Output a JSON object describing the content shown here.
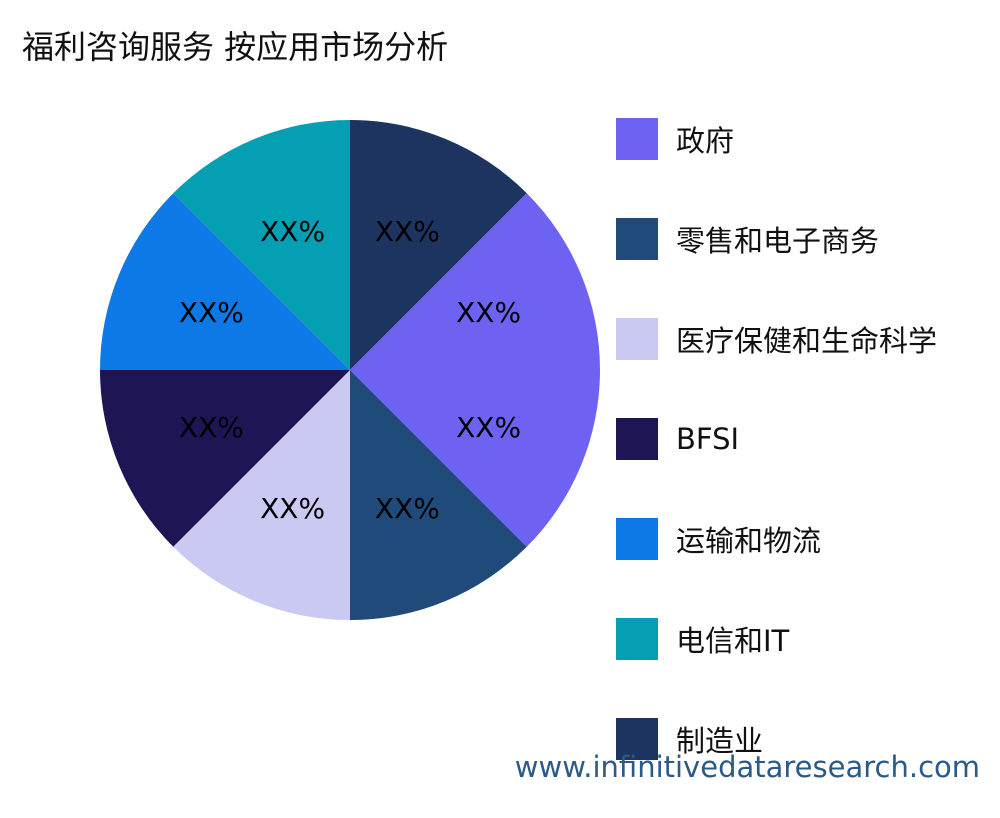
{
  "title": "福利咨询服务 按应用市场分析",
  "watermark": "www.infinitivedataresearch.com",
  "chart_data": {
    "type": "pie",
    "title": "福利咨询服务 按应用市场分析",
    "start_angle_deg": 0,
    "direction": "clockwise",
    "legend_placement": "right",
    "slices": [
      {
        "name": "制造业",
        "value": 12.5,
        "label": "XX%",
        "color": "#1d3461"
      },
      {
        "name": "政府",
        "value": 25,
        "label": "XX%",
        "color": "#6d62f2"
      },
      {
        "name": "零售和电子商务",
        "value": 12.5,
        "label": "XX%",
        "color": "#1f4a7a"
      },
      {
        "name": "医疗保健和生命科学",
        "value": 12.5,
        "label": "XX%",
        "color": "#c9c9f1"
      },
      {
        "name": "BFSI",
        "value": 12.5,
        "label": "XX%",
        "color": "#1e1654"
      },
      {
        "name": "运输和物流",
        "value": 12.5,
        "label": "XX%",
        "color": "#0d79e6"
      },
      {
        "name": "电信和IT",
        "value": 12.5,
        "label": "XX%",
        "color": "#059fb4"
      }
    ],
    "legend": [
      {
        "label": "政府",
        "color": "#6d62f2"
      },
      {
        "label": "零售和电子商务",
        "color": "#1f4a7a"
      },
      {
        "label": "医疗保健和生命科学",
        "color": "#c9c9f1"
      },
      {
        "label": "BFSI",
        "color": "#1e1654"
      },
      {
        "label": "运输和物流",
        "color": "#0d79e6"
      },
      {
        "label": "电信和IT",
        "color": "#059fb4"
      },
      {
        "label": "制造业",
        "color": "#1d3461"
      }
    ]
  }
}
